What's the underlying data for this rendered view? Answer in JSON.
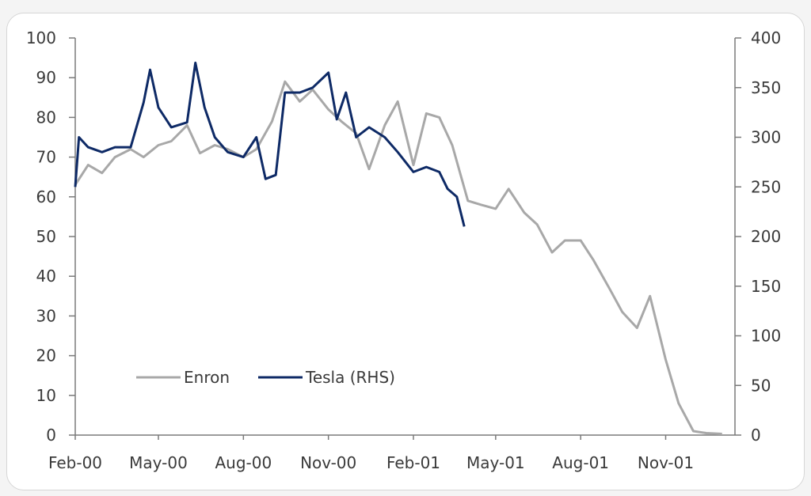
{
  "chart_data": {
    "type": "line",
    "title": "",
    "xlabel": "",
    "ylabel_left": "",
    "ylabel_right": "",
    "ylim_left": [
      0,
      100
    ],
    "ylim_right": [
      0,
      400
    ],
    "grid": false,
    "legend_position": "bottom-left",
    "x_tick_labels": [
      "Feb-00",
      "May-00",
      "Aug-00",
      "Nov-00",
      "Feb-01",
      "May-01",
      "Aug-01",
      "Nov-01"
    ],
    "y_left_tick_labels": [
      "0",
      "10",
      "20",
      "30",
      "40",
      "50",
      "60",
      "70",
      "80",
      "90",
      "100"
    ],
    "y_right_tick_labels": [
      "0",
      "50",
      "100",
      "150",
      "200",
      "250",
      "300",
      "350",
      "400"
    ],
    "series": [
      {
        "name": "Enron",
        "axis": "left",
        "color": "#a8a8a8",
        "points": [
          [
            "2000-02-01",
            63
          ],
          [
            "2000-02-15",
            68
          ],
          [
            "2000-03-01",
            66
          ],
          [
            "2000-03-15",
            70
          ],
          [
            "2000-04-01",
            72
          ],
          [
            "2000-04-15",
            70
          ],
          [
            "2000-05-01",
            73
          ],
          [
            "2000-05-15",
            74
          ],
          [
            "2000-06-01",
            78
          ],
          [
            "2000-06-15",
            71
          ],
          [
            "2000-07-01",
            73
          ],
          [
            "2000-07-15",
            72
          ],
          [
            "2000-08-01",
            70
          ],
          [
            "2000-08-15",
            72
          ],
          [
            "2000-09-01",
            79
          ],
          [
            "2000-09-15",
            89
          ],
          [
            "2000-10-01",
            84
          ],
          [
            "2000-10-15",
            87
          ],
          [
            "2000-11-01",
            82
          ],
          [
            "2000-11-15",
            79
          ],
          [
            "2000-12-01",
            76
          ],
          [
            "2000-12-15",
            67
          ],
          [
            "2001-01-01",
            78
          ],
          [
            "2001-01-15",
            84
          ],
          [
            "2001-02-01",
            68
          ],
          [
            "2001-02-15",
            81
          ],
          [
            "2001-03-01",
            80
          ],
          [
            "2001-03-15",
            73
          ],
          [
            "2001-04-01",
            59
          ],
          [
            "2001-04-15",
            58
          ],
          [
            "2001-05-01",
            57
          ],
          [
            "2001-05-15",
            62
          ],
          [
            "2001-06-01",
            56
          ],
          [
            "2001-06-15",
            53
          ],
          [
            "2001-07-01",
            46
          ],
          [
            "2001-07-15",
            49
          ],
          [
            "2001-08-01",
            49
          ],
          [
            "2001-08-15",
            44
          ],
          [
            "2001-09-01",
            37
          ],
          [
            "2001-09-15",
            31
          ],
          [
            "2001-10-01",
            27
          ],
          [
            "2001-10-15",
            35
          ],
          [
            "2001-11-01",
            19
          ],
          [
            "2001-11-15",
            8
          ],
          [
            "2001-12-01",
            1
          ],
          [
            "2001-12-15",
            0.5
          ],
          [
            "2002-01-01",
            0.3
          ]
        ]
      },
      {
        "name": "Tesla (RHS)",
        "axis": "right",
        "color": "#0e2a66",
        "points": [
          [
            "2000-02-01",
            250
          ],
          [
            "2000-02-05",
            300
          ],
          [
            "2000-02-15",
            290
          ],
          [
            "2000-03-01",
            285
          ],
          [
            "2000-03-15",
            290
          ],
          [
            "2000-04-01",
            290
          ],
          [
            "2000-04-15",
            335
          ],
          [
            "2000-04-22",
            368
          ],
          [
            "2000-05-01",
            330
          ],
          [
            "2000-05-15",
            310
          ],
          [
            "2000-06-01",
            315
          ],
          [
            "2000-06-10",
            375
          ],
          [
            "2000-06-20",
            330
          ],
          [
            "2000-07-01",
            300
          ],
          [
            "2000-07-15",
            285
          ],
          [
            "2000-08-01",
            280
          ],
          [
            "2000-08-15",
            300
          ],
          [
            "2000-08-25",
            258
          ],
          [
            "2000-09-05",
            262
          ],
          [
            "2000-09-15",
            345
          ],
          [
            "2000-10-01",
            345
          ],
          [
            "2000-10-15",
            350
          ],
          [
            "2000-11-01",
            365
          ],
          [
            "2000-11-10",
            318
          ],
          [
            "2000-11-20",
            345
          ],
          [
            "2000-12-01",
            300
          ],
          [
            "2000-12-15",
            310
          ],
          [
            "2001-01-01",
            300
          ],
          [
            "2001-01-15",
            285
          ],
          [
            "2001-02-01",
            265
          ],
          [
            "2001-02-15",
            270
          ],
          [
            "2001-03-01",
            265
          ],
          [
            "2001-03-10",
            248
          ],
          [
            "2001-03-20",
            240
          ],
          [
            "2001-03-28",
            210
          ]
        ]
      }
    ]
  }
}
